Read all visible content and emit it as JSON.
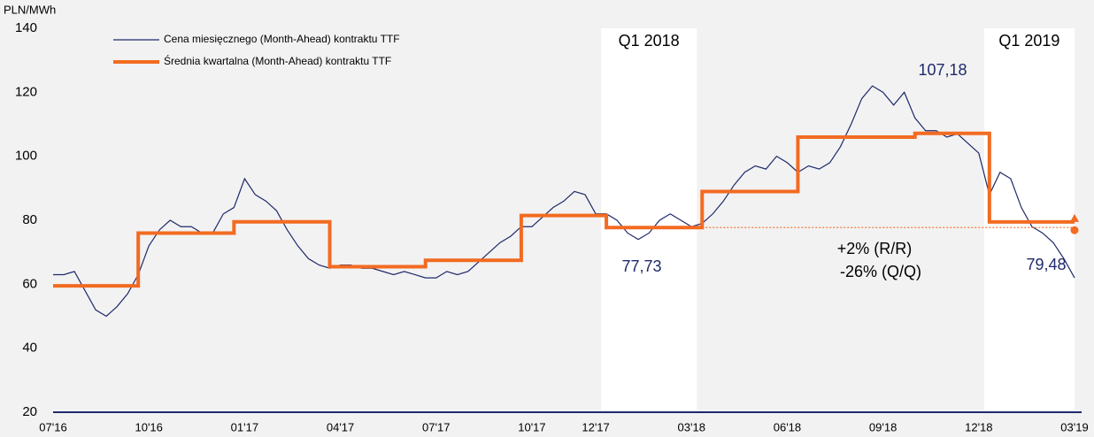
{
  "chart_data": {
    "type": "line",
    "y_label": "PLN/MWh",
    "legend": "top-left",
    "categories": [
      "07'16",
      null,
      null,
      null,
      null,
      null,
      null,
      null,
      null,
      "10'16",
      null,
      null,
      null,
      null,
      null,
      null,
      null,
      null,
      "01'17",
      null,
      null,
      null,
      null,
      null,
      null,
      null,
      null,
      "04'17",
      null,
      null,
      null,
      null,
      null,
      null,
      null,
      null,
      "07'17",
      null,
      null,
      null,
      null,
      null,
      null,
      null,
      null,
      "10'17",
      null,
      null,
      null,
      null,
      null,
      "12'17",
      null,
      null,
      null,
      null,
      null,
      null,
      null,
      null,
      "03'18",
      null,
      null,
      null,
      null,
      null,
      null,
      null,
      null,
      "06'18",
      null,
      null,
      null,
      null,
      null,
      null,
      null,
      null,
      "09'18",
      null,
      null,
      null,
      null,
      null,
      null,
      null,
      null,
      "12'18",
      null,
      null,
      null,
      null,
      null,
      null,
      null,
      null,
      "03'19"
    ],
    "series": [
      {
        "name": "Cena miesięcznego (Month-Ahead) kontraktu TTF",
        "color": "#1f2a6b",
        "values": [
          63,
          63,
          64,
          58,
          52,
          50,
          53,
          57,
          63,
          72,
          77,
          80,
          78,
          78,
          76,
          76,
          82,
          84,
          93,
          88,
          86,
          83,
          77,
          72,
          68,
          66,
          65,
          66,
          66,
          65,
          65,
          64,
          63,
          64,
          63,
          62,
          62,
          64,
          63,
          64,
          67,
          70,
          73,
          75,
          78,
          78,
          81,
          84,
          86,
          89,
          88,
          82,
          82,
          80,
          76,
          74,
          76,
          80,
          82,
          80,
          78,
          79,
          82,
          86,
          91,
          95,
          97,
          96,
          100,
          98,
          95,
          97,
          96,
          98,
          103,
          110,
          118,
          122,
          120,
          116,
          120,
          112,
          108,
          108,
          106,
          107,
          104,
          101,
          88,
          95,
          93,
          84,
          78,
          76,
          73,
          68,
          62
        ]
      },
      {
        "name": "Średnia kwartalna (Month-Ahead) kontraktu TTF",
        "color": "#f26b21",
        "step": true,
        "values": [
          59.5,
          59.5,
          59.5,
          59.5,
          59.5,
          59.5,
          59.5,
          59.5,
          76,
          76,
          76,
          76,
          76,
          76,
          76,
          76,
          76,
          79.5,
          79.5,
          79.5,
          79.5,
          79.5,
          79.5,
          79.5,
          79.5,
          79.5,
          65.5,
          65.5,
          65.5,
          65.5,
          65.5,
          65.5,
          65.5,
          65.5,
          65.5,
          67.5,
          67.5,
          67.5,
          67.5,
          67.5,
          67.5,
          67.5,
          67.5,
          67.5,
          81.5,
          81.5,
          81.5,
          81.5,
          81.5,
          81.5,
          81.5,
          81.5,
          77.73,
          77.73,
          77.73,
          77.73,
          77.73,
          77.73,
          77.73,
          77.73,
          77.73,
          89,
          89,
          89,
          89,
          89,
          89,
          89,
          89,
          89,
          106,
          106,
          106,
          106,
          106,
          106,
          106,
          106,
          106,
          106,
          106,
          107.18,
          107.18,
          107.18,
          107.18,
          107.18,
          107.18,
          107.18,
          79.48,
          79.48,
          79.48,
          79.48,
          79.48,
          79.48,
          79.48,
          79.48,
          79.48
        ]
      }
    ],
    "shaded_regions": [
      {
        "label": "Q1 2018",
        "from": 52,
        "to": 60
      },
      {
        "label": "Q1 2019",
        "from": 88,
        "to": 96
      }
    ],
    "annotations": [
      "107,18",
      "77,73",
      "+2% (R/R)",
      "-26% (Q/Q)",
      "79,48"
    ],
    "ylim": [
      20,
      140
    ],
    "yticks": [
      20,
      40,
      60,
      80,
      100,
      120,
      140
    ]
  }
}
